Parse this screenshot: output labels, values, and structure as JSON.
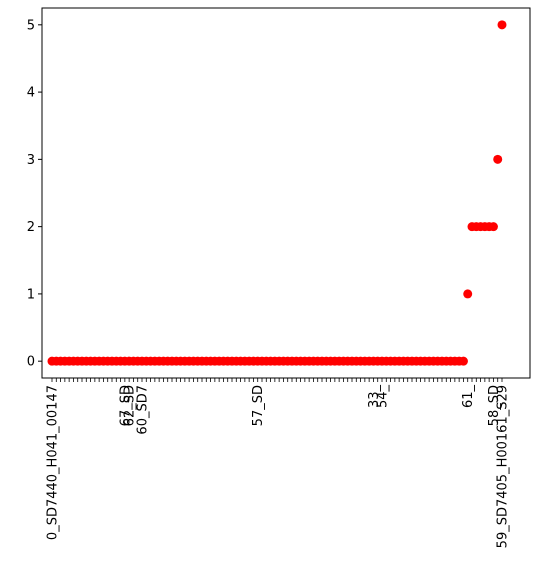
{
  "chart_data": {
    "type": "scatter",
    "title": "",
    "xlabel": "",
    "ylabel": "",
    "ylim": [
      -0.25,
      5.25
    ],
    "yticks": [
      "0",
      "1",
      "2",
      "3",
      "4",
      "5"
    ],
    "grid": false,
    "legend": "none",
    "marker_color": "#ff0000",
    "xtick_labels_rotated_deg": 90,
    "x_first_label": "0_SD7440_H041_00147",
    "x_last_label": "59_SD7405_H00161_S29",
    "x_labels_readable": [
      {
        "index": 0,
        "label": "0_SD7440_H041_00147"
      },
      {
        "index": 17,
        "label": "67_SD"
      },
      {
        "index": 18,
        "label": "62_SD"
      },
      {
        "index": 21,
        "label": "60_SD7"
      },
      {
        "index": 48,
        "label": "57_SD"
      },
      {
        "index": 75,
        "label": "33_"
      },
      {
        "index": 77,
        "label": "54_"
      },
      {
        "index": 97,
        "label": "61_"
      },
      {
        "index": 103,
        "label": "58_SD"
      },
      {
        "index": 105,
        "label": "59_SD7405_H00161_S29"
      }
    ],
    "values": [
      0,
      0,
      0,
      0,
      0,
      0,
      0,
      0,
      0,
      0,
      0,
      0,
      0,
      0,
      0,
      0,
      0,
      0,
      0,
      0,
      0,
      0,
      0,
      0,
      0,
      0,
      0,
      0,
      0,
      0,
      0,
      0,
      0,
      0,
      0,
      0,
      0,
      0,
      0,
      0,
      0,
      0,
      0,
      0,
      0,
      0,
      0,
      0,
      0,
      0,
      0,
      0,
      0,
      0,
      0,
      0,
      0,
      0,
      0,
      0,
      0,
      0,
      0,
      0,
      0,
      0,
      0,
      0,
      0,
      0,
      0,
      0,
      0,
      0,
      0,
      0,
      0,
      0,
      0,
      0,
      0,
      0,
      0,
      0,
      0,
      0,
      0,
      0,
      0,
      0,
      0,
      0,
      0,
      0,
      0,
      0,
      0,
      1,
      2,
      2,
      2,
      2,
      2,
      2,
      3,
      5
    ]
  }
}
